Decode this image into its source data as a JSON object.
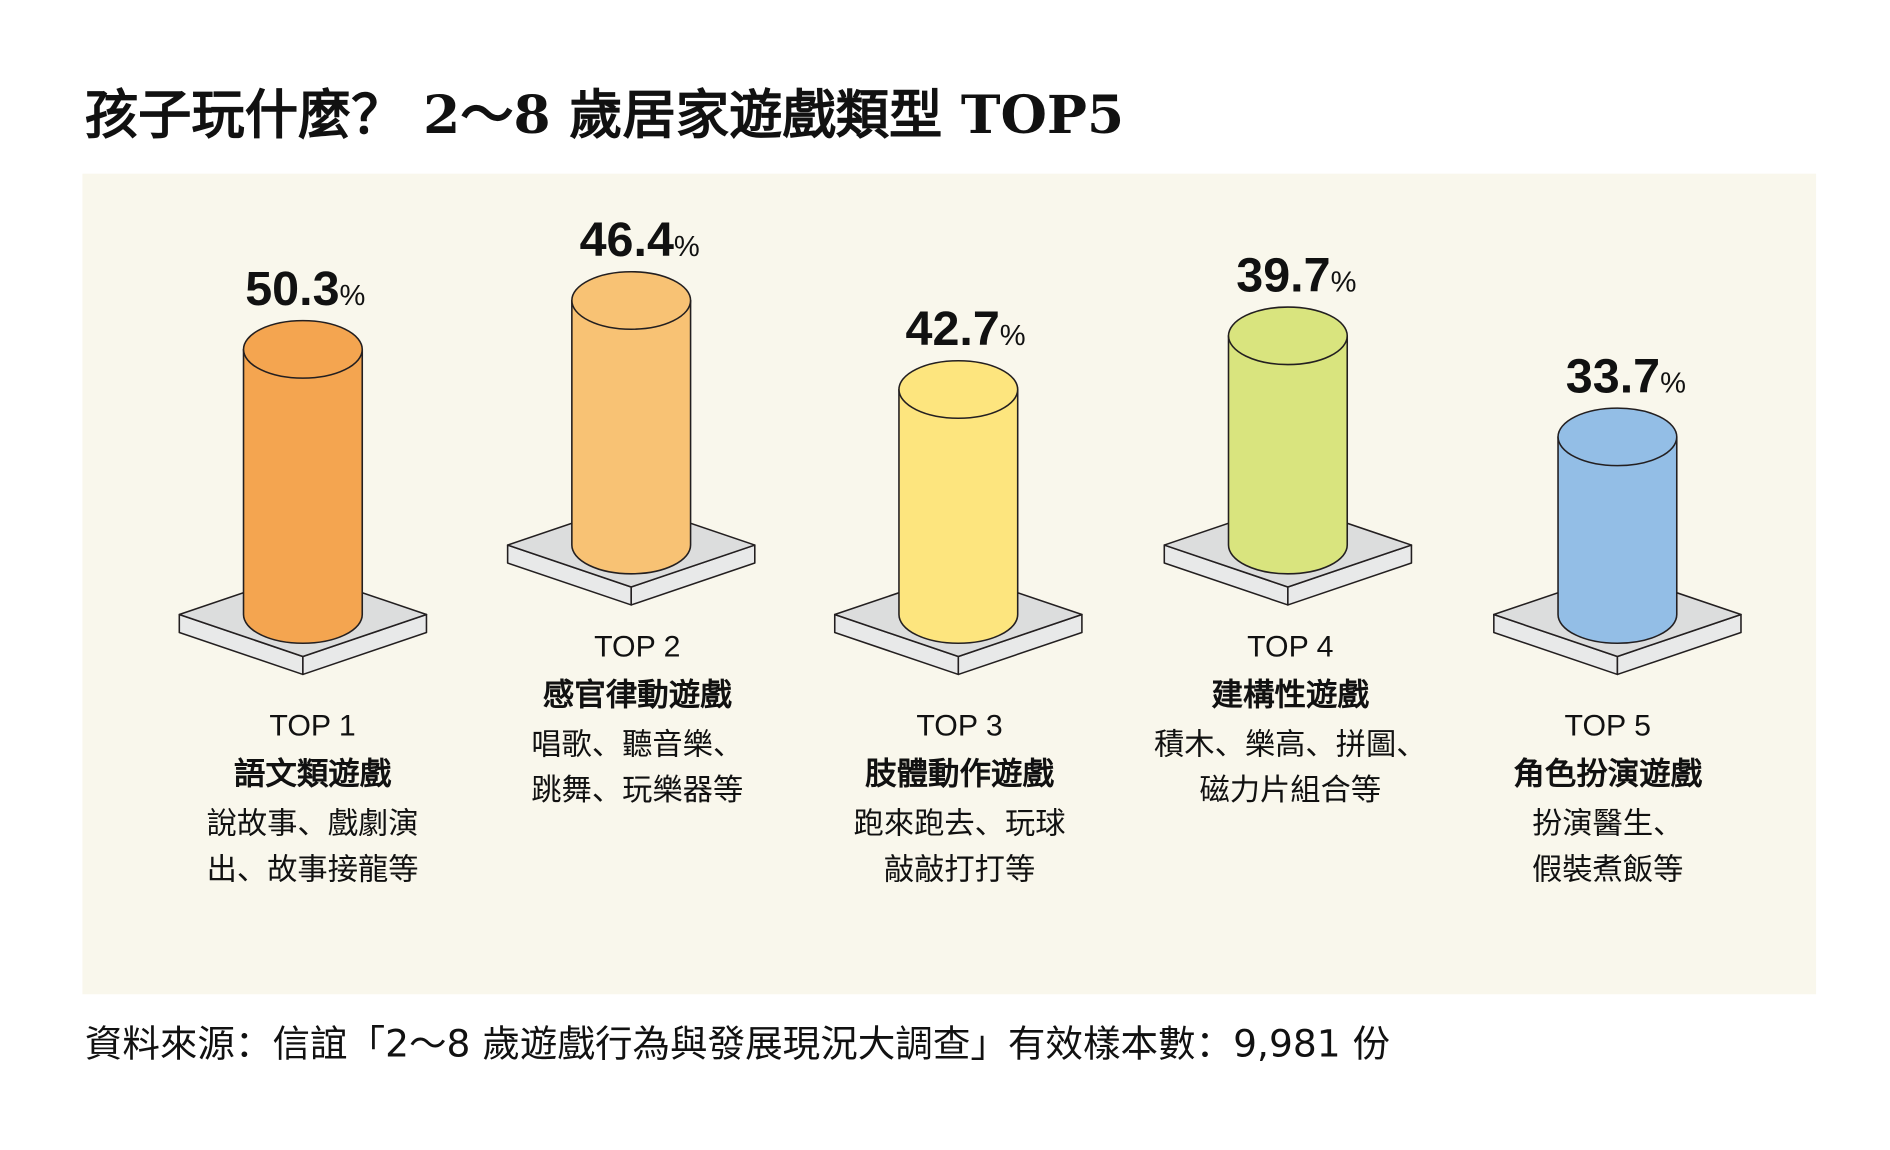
{
  "title": "孩子玩什麼？ 2～8 歲居家遊戲類型 TOP5",
  "source": "資料來源：信誼「2～8 歲遊戲行為與發展現況大調查」有效樣本數：9,981 份",
  "panel_color": "#f9f7ec",
  "chart_data": {
    "type": "bar",
    "style": "3d-cylinder",
    "unit": "%",
    "categories": [
      "語文類遊戲",
      "感官律動遊戲",
      "肢體動作遊戲",
      "建構性遊戲",
      "角色扮演遊戲"
    ],
    "values": [
      50.3,
      46.4,
      42.7,
      39.7,
      33.7
    ],
    "grid": false,
    "items": [
      {
        "rank": "TOP 1",
        "name": "語文類遊戲",
        "value": 50.3,
        "color": "#f4a550",
        "desc": [
          "說故事、戲劇演",
          "出、故事接龍等"
        ]
      },
      {
        "rank": "TOP 2",
        "name": "感官律動遊戲",
        "value": 46.4,
        "color": "#f8c274",
        "desc": [
          "唱歌、聽音樂、",
          "跳舞、玩樂器等"
        ]
      },
      {
        "rank": "TOP 3",
        "name": "肢體動作遊戲",
        "value": 42.7,
        "color": "#fde57e",
        "desc": [
          "跑來跑去、玩球",
          "敲敲打打等"
        ]
      },
      {
        "rank": "TOP 4",
        "name": "建構性遊戲",
        "value": 39.7,
        "color": "#d9e47e",
        "desc": [
          "積木、樂高、拼圖、",
          "磁力片組合等"
        ]
      },
      {
        "rank": "TOP 5",
        "name": "角色扮演遊戲",
        "value": 33.7,
        "color": "#93bee6",
        "desc": [
          "扮演醫生、",
          "假裝煮飯等"
        ]
      }
    ]
  }
}
